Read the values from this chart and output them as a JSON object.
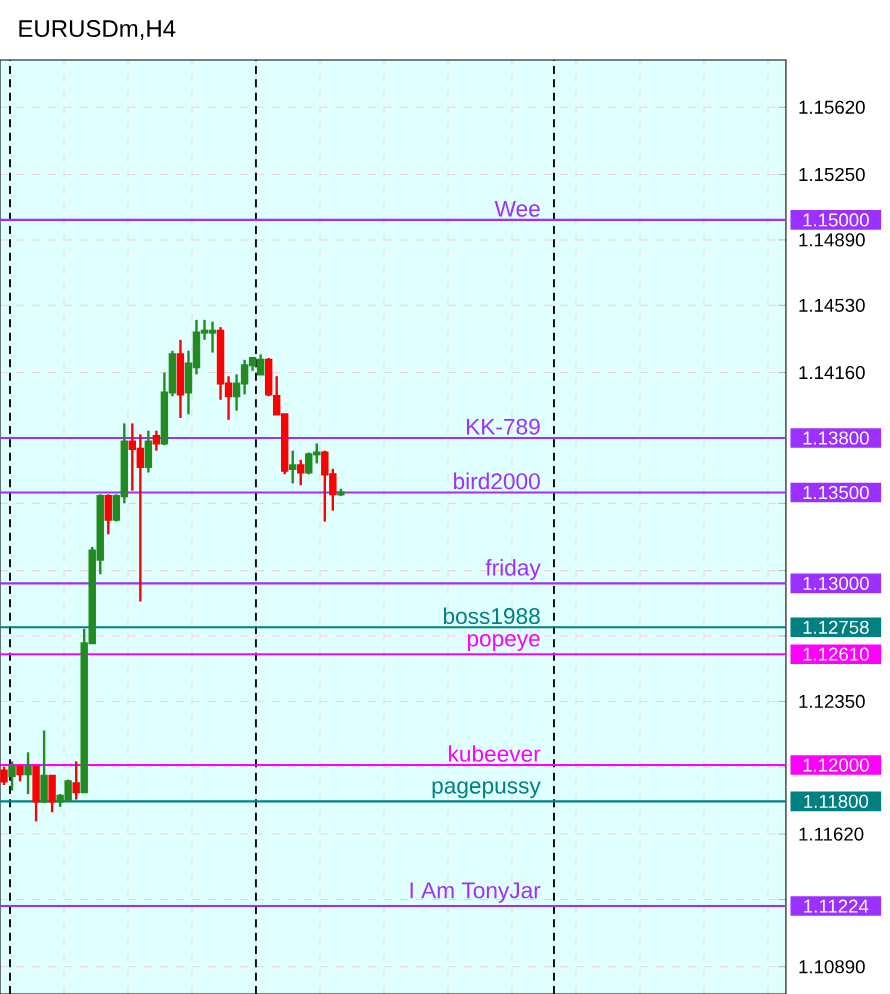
{
  "chart_data": {
    "type": "candlestick",
    "title": "EURUSDm,H4",
    "categories": [
      null,
      null,
      null,
      null,
      null,
      null,
      null,
      null,
      null,
      null,
      null,
      null,
      null,
      null,
      null,
      null,
      null,
      null,
      null,
      null,
      null,
      null,
      null,
      null,
      null,
      null,
      null,
      null,
      null,
      null,
      null,
      null,
      null,
      null,
      null,
      null,
      null,
      null,
      null,
      null,
      null,
      null,
      null,
      null,
      null,
      null,
      null,
      null,
      null,
      null,
      null,
      null,
      null,
      null,
      null,
      null,
      null,
      null,
      null,
      null,
      null,
      null,
      null,
      null,
      null,
      null,
      null,
      null,
      null,
      null,
      null,
      null,
      null,
      null,
      null,
      null,
      null,
      null,
      null,
      null,
      null,
      null,
      null,
      null,
      null,
      null,
      null,
      null,
      null,
      null,
      null,
      null,
      null,
      null,
      null,
      null,
      null,
      null
    ],
    "ohlc": [
      [
        1.1197,
        1.1199,
        1.1189,
        1.1191
      ],
      [
        1.1194,
        1.1202,
        1.1186,
        1.1199
      ],
      [
        1.1199,
        1.12,
        1.1191,
        1.1195
      ],
      [
        1.1195,
        1.1207,
        1.1184,
        1.1199
      ],
      [
        1.1199,
        1.1199,
        1.1169,
        1.118
      ],
      [
        1.118,
        1.1219,
        1.1179,
        1.1194
      ],
      [
        1.1194,
        1.1194,
        1.1174,
        1.118
      ],
      [
        1.118,
        1.1184,
        1.1177,
        1.1183
      ],
      [
        1.1181,
        1.1192,
        1.118,
        1.1191
      ],
      [
        1.119,
        1.1202,
        1.1181,
        1.1185
      ],
      [
        1.1185,
        1.1275,
        1.1185,
        1.1267
      ],
      [
        1.1267,
        1.132,
        1.1267,
        1.1318
      ],
      [
        1.1313,
        1.1349,
        1.1305,
        1.1348
      ],
      [
        1.1348,
        1.1349,
        1.1327,
        1.1335
      ],
      [
        1.1335,
        1.1349,
        1.1334,
        1.1348
      ],
      [
        1.1348,
        1.1388,
        1.1344,
        1.1378
      ],
      [
        1.1378,
        1.1388,
        1.1351,
        1.1374
      ],
      [
        1.1374,
        1.1382,
        1.129,
        1.1364
      ],
      [
        1.1364,
        1.1384,
        1.1361,
        1.1378
      ],
      [
        1.1381,
        1.1384,
        1.1373,
        1.1377
      ],
      [
        1.1377,
        1.1416,
        1.1376,
        1.1405
      ],
      [
        1.1405,
        1.1428,
        1.1403,
        1.1426
      ],
      [
        1.1426,
        1.1434,
        1.1391,
        1.1404
      ],
      [
        1.1405,
        1.1428,
        1.1393,
        1.1421
      ],
      [
        1.1419,
        1.1445,
        1.1415,
        1.1438
      ],
      [
        1.1438,
        1.1445,
        1.1434,
        1.1439
      ],
      [
        1.1438,
        1.1444,
        1.1427,
        1.1439
      ],
      [
        1.1439,
        1.1441,
        1.1401,
        1.141
      ],
      [
        1.141,
        1.1414,
        1.139,
        1.1403
      ],
      [
        1.1403,
        1.1415,
        1.1395,
        1.141
      ],
      [
        1.141,
        1.1423,
        1.1404,
        1.142
      ],
      [
        1.142,
        1.1424,
        1.1417,
        1.1424
      ],
      [
        1.1415,
        1.1426,
        1.1415,
        1.1423
      ],
      [
        1.1423,
        1.1424,
        1.1403,
        1.1404
      ],
      [
        1.1403,
        1.1414,
        1.1393,
        1.1393
      ],
      [
        1.1393,
        1.1393,
        1.136,
        1.1362
      ],
      [
        1.1363,
        1.1373,
        1.1355,
        1.1365
      ],
      [
        1.1365,
        1.1368,
        1.1354,
        1.1361
      ],
      [
        1.1361,
        1.1372,
        1.136,
        1.1371
      ],
      [
        1.1371,
        1.1377,
        1.1366,
        1.1372
      ],
      [
        1.1372,
        1.1373,
        1.1334,
        1.136
      ],
      [
        1.136,
        1.1363,
        1.134,
        1.1349
      ],
      [
        1.1349,
        1.1352,
        1.1348,
        1.135
      ],
      null,
      null,
      null,
      null,
      null,
      null,
      null,
      null,
      null,
      null,
      null,
      null,
      null,
      null,
      null,
      null,
      null,
      null,
      null,
      null,
      null,
      null,
      null,
      null,
      null,
      null,
      null,
      null,
      null,
      null,
      null,
      null,
      null,
      null,
      null,
      null,
      null,
      null,
      null,
      null,
      null,
      null,
      null,
      null,
      null,
      null,
      null,
      null,
      null,
      null,
      null,
      null,
      null,
      null,
      null
    ],
    "ylim": [
      1.1074,
      1.1588
    ],
    "yticks": [
      {
        "value": 1.1562,
        "label": "1.15620"
      },
      {
        "value": 1.1525,
        "label": "1.15250"
      },
      {
        "value": 1.1489,
        "label": "1.14890"
      },
      {
        "value": 1.1453,
        "label": "1.14530"
      },
      {
        "value": 1.1416,
        "label": "1.14160"
      },
      {
        "value": 1.138,
        "label": null
      },
      {
        "value": 1.1344,
        "label": null
      },
      {
        "value": 1.1307,
        "label": null
      },
      {
        "value": 1.1271,
        "label": null
      },
      {
        "value": 1.1235,
        "label": "1.12350"
      },
      {
        "value": 1.1199,
        "label": null
      },
      {
        "value": 1.1162,
        "label": "1.11620"
      },
      {
        "value": 1.1126,
        "label": null
      },
      {
        "value": 1.1089,
        "label": "1.10890"
      }
    ],
    "tick_labels": "y",
    "grid": true,
    "ref_lines": [
      {
        "axis": "y",
        "value": 1.15,
        "label": "Wee",
        "color": "#9b30ff"
      },
      {
        "axis": "y",
        "value": 1.138,
        "label": "KK-789",
        "color": "#9b30ff"
      },
      {
        "axis": "y",
        "value": 1.135,
        "label": "bird2000",
        "color": "#9b30ff"
      },
      {
        "axis": "y",
        "value": 1.13,
        "label": "friday",
        "color": "#9b30ff"
      },
      {
        "axis": "y",
        "value": 1.12758,
        "label": "boss1988",
        "color": "#008080"
      },
      {
        "axis": "y",
        "value": 1.1261,
        "label": "popeye",
        "color": "#ff00ff"
      },
      {
        "axis": "y",
        "value": 1.12,
        "label": "kubeever",
        "color": "#ff00ff"
      },
      {
        "axis": "y",
        "value": 1.118,
        "label": "pagepussy",
        "color": "#008080"
      },
      {
        "axis": "y",
        "value": 1.11224,
        "label": "I Am TonyJar",
        "color": "#9b30ff"
      }
    ],
    "annotations": [
      "1.15000",
      "1.13800",
      "1.13500",
      "1.13000",
      "1.12758",
      "1.12610",
      "1.12000",
      "1.11800",
      "1.11224"
    ]
  }
}
